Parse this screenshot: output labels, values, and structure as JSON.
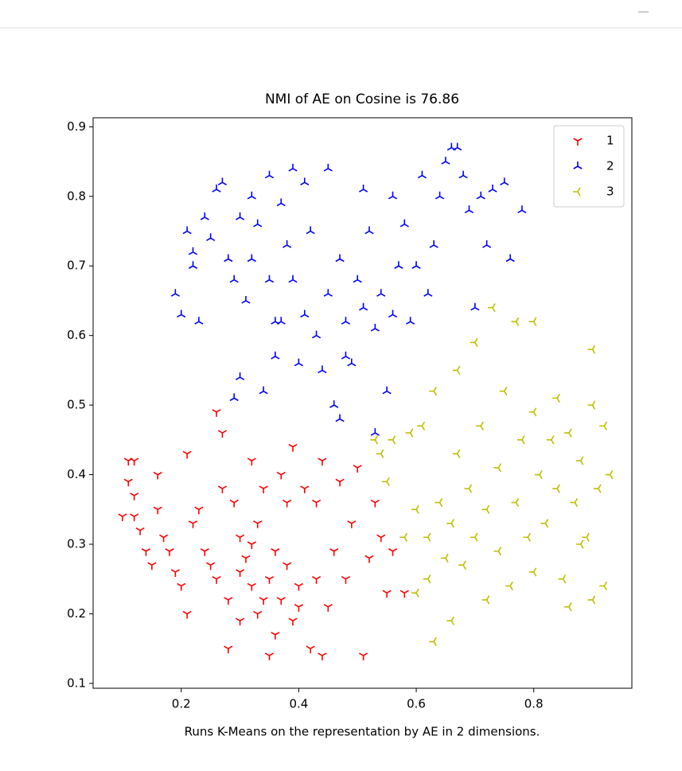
{
  "chart_data": {
    "type": "scatter",
    "title": "NMI of AE on Cosine is 76.86",
    "xlabel": "Runs K-Means on the representation by AE in 2 dimensions.",
    "xlim": [
      0.05,
      0.967
    ],
    "ylim": [
      0.093,
      0.913
    ],
    "xticks": [
      0.2,
      0.4,
      0.6,
      0.8
    ],
    "yticks": [
      0.1,
      0.2,
      0.3,
      0.4,
      0.5,
      0.6,
      0.7,
      0.8,
      0.9
    ],
    "legend": "upper right",
    "series": [
      {
        "name": "1",
        "color": "#ff0000",
        "marker": "tri_down",
        "x": [
          0.11,
          0.12,
          0.11,
          0.12,
          0.1,
          0.12,
          0.13,
          0.14,
          0.15,
          0.16,
          0.16,
          0.17,
          0.18,
          0.19,
          0.2,
          0.21,
          0.21,
          0.22,
          0.23,
          0.24,
          0.25,
          0.26,
          0.26,
          0.27,
          0.27,
          0.28,
          0.28,
          0.29,
          0.3,
          0.3,
          0.31,
          0.32,
          0.32,
          0.33,
          0.33,
          0.34,
          0.35,
          0.35,
          0.36,
          0.37,
          0.37,
          0.38,
          0.38,
          0.39,
          0.39,
          0.4,
          0.41,
          0.42,
          0.43,
          0.43,
          0.44,
          0.44,
          0.45,
          0.46,
          0.47,
          0.48,
          0.49,
          0.5,
          0.51,
          0.52,
          0.53,
          0.54,
          0.55,
          0.56,
          0.58,
          0.3,
          0.32,
          0.34,
          0.36,
          0.4
        ],
        "y": [
          0.42,
          0.42,
          0.39,
          0.37,
          0.34,
          0.34,
          0.32,
          0.29,
          0.27,
          0.4,
          0.35,
          0.31,
          0.29,
          0.26,
          0.24,
          0.2,
          0.43,
          0.33,
          0.35,
          0.29,
          0.27,
          0.25,
          0.49,
          0.46,
          0.38,
          0.22,
          0.15,
          0.36,
          0.31,
          0.19,
          0.28,
          0.42,
          0.24,
          0.33,
          0.2,
          0.38,
          0.25,
          0.14,
          0.17,
          0.4,
          0.22,
          0.36,
          0.27,
          0.44,
          0.19,
          0.24,
          0.38,
          0.15,
          0.36,
          0.25,
          0.42,
          0.14,
          0.21,
          0.29,
          0.39,
          0.25,
          0.33,
          0.41,
          0.14,
          0.28,
          0.36,
          0.31,
          0.23,
          0.29,
          0.23,
          0.26,
          0.3,
          0.22,
          0.29,
          0.21
        ]
      },
      {
        "name": "2",
        "color": "#0000ff",
        "marker": "tri_up",
        "x": [
          0.19,
          0.2,
          0.21,
          0.22,
          0.22,
          0.23,
          0.24,
          0.25,
          0.26,
          0.27,
          0.28,
          0.29,
          0.29,
          0.3,
          0.3,
          0.31,
          0.32,
          0.32,
          0.33,
          0.34,
          0.35,
          0.35,
          0.36,
          0.37,
          0.37,
          0.38,
          0.39,
          0.39,
          0.4,
          0.41,
          0.41,
          0.42,
          0.43,
          0.44,
          0.45,
          0.45,
          0.46,
          0.47,
          0.47,
          0.48,
          0.49,
          0.5,
          0.51,
          0.51,
          0.52,
          0.53,
          0.54,
          0.55,
          0.56,
          0.56,
          0.57,
          0.58,
          0.59,
          0.6,
          0.61,
          0.62,
          0.63,
          0.64,
          0.65,
          0.66,
          0.67,
          0.68,
          0.69,
          0.7,
          0.71,
          0.72,
          0.73,
          0.75,
          0.76,
          0.78,
          0.53,
          0.48,
          0.36
        ],
        "y": [
          0.66,
          0.63,
          0.75,
          0.72,
          0.7,
          0.62,
          0.77,
          0.74,
          0.81,
          0.82,
          0.71,
          0.68,
          0.51,
          0.77,
          0.54,
          0.65,
          0.8,
          0.71,
          0.76,
          0.52,
          0.83,
          0.68,
          0.57,
          0.79,
          0.62,
          0.73,
          0.84,
          0.68,
          0.56,
          0.82,
          0.63,
          0.75,
          0.6,
          0.55,
          0.84,
          0.66,
          0.5,
          0.71,
          0.48,
          0.62,
          0.56,
          0.68,
          0.81,
          0.64,
          0.75,
          0.61,
          0.66,
          0.52,
          0.8,
          0.63,
          0.7,
          0.76,
          0.62,
          0.7,
          0.83,
          0.66,
          0.73,
          0.8,
          0.85,
          0.87,
          0.87,
          0.83,
          0.78,
          0.64,
          0.8,
          0.73,
          0.81,
          0.82,
          0.71,
          0.78,
          0.46,
          0.57,
          0.62
        ]
      },
      {
        "name": "3",
        "color": "#bfbf00",
        "marker": "tri_left",
        "x": [
          0.53,
          0.54,
          0.55,
          0.56,
          0.58,
          0.59,
          0.6,
          0.6,
          0.61,
          0.62,
          0.62,
          0.63,
          0.63,
          0.64,
          0.65,
          0.66,
          0.66,
          0.67,
          0.67,
          0.68,
          0.69,
          0.7,
          0.7,
          0.71,
          0.72,
          0.72,
          0.73,
          0.74,
          0.74,
          0.75,
          0.76,
          0.77,
          0.77,
          0.78,
          0.79,
          0.8,
          0.8,
          0.8,
          0.81,
          0.82,
          0.83,
          0.84,
          0.85,
          0.86,
          0.86,
          0.87,
          0.88,
          0.89,
          0.9,
          0.9,
          0.9,
          0.91,
          0.92,
          0.92,
          0.93,
          0.88,
          0.84
        ],
        "y": [
          0.45,
          0.43,
          0.39,
          0.45,
          0.31,
          0.46,
          0.35,
          0.23,
          0.47,
          0.31,
          0.25,
          0.52,
          0.16,
          0.36,
          0.28,
          0.19,
          0.33,
          0.55,
          0.43,
          0.27,
          0.38,
          0.31,
          0.59,
          0.47,
          0.22,
          0.35,
          0.64,
          0.41,
          0.29,
          0.52,
          0.24,
          0.62,
          0.36,
          0.45,
          0.31,
          0.62,
          0.49,
          0.26,
          0.4,
          0.33,
          0.45,
          0.38,
          0.25,
          0.46,
          0.21,
          0.36,
          0.42,
          0.31,
          0.58,
          0.22,
          0.5,
          0.38,
          0.47,
          0.24,
          0.4,
          0.3,
          0.51
        ]
      }
    ]
  }
}
